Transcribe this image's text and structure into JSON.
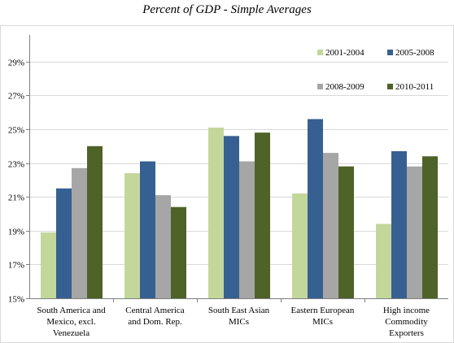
{
  "chart_data": {
    "type": "bar",
    "title": "Percent of GDP - Simple Averages",
    "categories": [
      [
        "South America and",
        "Mexico, excl.",
        "Venezuela"
      ],
      [
        "Central America",
        "and Dom. Rep."
      ],
      [
        "South East Asian",
        "MICs"
      ],
      [
        "Eastern European",
        "MICs"
      ],
      [
        "High income",
        "Commodity",
        "Exporters"
      ]
    ],
    "series": [
      {
        "name": "2001-2004",
        "color": "#c4d79b",
        "values": [
          18.9,
          22.4,
          25.1,
          21.2,
          19.4
        ]
      },
      {
        "name": "2005-2008",
        "color": "#376092",
        "values": [
          21.5,
          23.1,
          24.6,
          25.6,
          23.7
        ]
      },
      {
        "name": "2008-2009",
        "color": "#a6a6a6",
        "values": [
          22.7,
          21.1,
          23.1,
          23.6,
          22.8
        ]
      },
      {
        "name": "2010-2011",
        "color": "#4f6228",
        "values": [
          24.0,
          20.4,
          24.8,
          22.8,
          23.4
        ]
      }
    ],
    "ylim": [
      15,
      30
    ],
    "yticks": [
      "15%",
      "17%",
      "19%",
      "21%",
      "23%",
      "25%",
      "27%",
      "29%"
    ],
    "ytick_values": [
      15,
      17,
      19,
      21,
      23,
      25,
      27,
      29
    ],
    "grid": true,
    "legend_position": "top-right"
  }
}
